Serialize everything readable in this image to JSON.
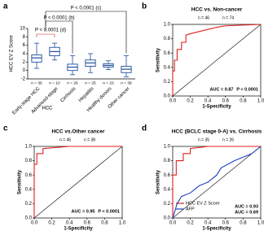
{
  "chart_data": [
    {
      "type": "box",
      "panel_label": "a",
      "y_label": "HCC EV Z Score",
      "categories": [
        "Early-stage HCC",
        "Advanced-stage",
        "Cirrhosis",
        "Hepatitis",
        "Healthy donors",
        "Other cancer"
      ],
      "group_label": "HCC",
      "n_labels": [
        "n = 36",
        "n = 10",
        "n = 26",
        "n = 25",
        "n = 23",
        "n = 38"
      ],
      "min": [
        0.5,
        2.5,
        -1,
        -0.5,
        0.2,
        -1.5
      ],
      "q1": [
        2,
        3.5,
        0,
        1,
        0.8,
        -0.5
      ],
      "median": [
        3,
        4.5,
        0.8,
        1.8,
        1.2,
        0.3
      ],
      "q3": [
        3.7,
        5.5,
        1.5,
        2.5,
        1.6,
        1
      ],
      "max": [
        6.5,
        6.5,
        3.5,
        4,
        2.3,
        3.5
      ],
      "color": "#1f4e9c",
      "ylim": [
        -2,
        10
      ],
      "yticks": [
        -2,
        0,
        2,
        4,
        6,
        8,
        10
      ],
      "comparisons": [
        {
          "label": "P < 0.0001 (c)",
          "color": "#000000"
        },
        {
          "label": "P < 0.0001 (b)",
          "color": "#000000"
        },
        {
          "label": "P < 0.0001 (d)",
          "color": "#e0201b"
        }
      ]
    },
    {
      "type": "line",
      "panel_label": "b",
      "title": "HCC vs. Non-cancer",
      "x_label": "1-Specificity",
      "y_label": "Sensitivity",
      "n_labels": [
        "n = 46",
        "n = 74"
      ],
      "annotations": [
        "AUC = 0.87",
        "P < 0.0001"
      ],
      "series": [
        {
          "color": "#e0201b",
          "x": [
            0,
            0,
            0.02,
            0.02,
            0.05,
            0.05,
            0.1,
            0.1,
            0.15,
            0.15,
            0.2,
            0.3,
            0.4,
            0.5,
            0.6,
            1.0
          ],
          "values": [
            0,
            0.35,
            0.35,
            0.5,
            0.5,
            0.65,
            0.65,
            0.75,
            0.75,
            0.85,
            0.87,
            0.9,
            0.93,
            0.96,
            0.98,
            1.0
          ]
        }
      ],
      "xlim": [
        0,
        1
      ],
      "ylim": [
        0,
        1
      ],
      "xticks": [
        {
          "value": 0,
          "label": "0.0"
        },
        0.2,
        0.4,
        0.6,
        0.8,
        {
          "value": 1,
          "label": "1.0"
        }
      ],
      "yticks": [
        {
          "value": 0,
          "label": "0.0"
        },
        0.2,
        0.4,
        0.6,
        0.8,
        {
          "value": 1,
          "label": "1.0"
        }
      ]
    },
    {
      "type": "line",
      "panel_label": "c",
      "title": "HCC vs.Other cancer",
      "x_label": "1-Specificity",
      "y_label": "Sensitivity",
      "n_labels": [
        "n = 46",
        "n = 38"
      ],
      "annotations": [
        "AUC = 0.95",
        "P < 0.0001"
      ],
      "series": [
        {
          "color": "#e0201b",
          "x": [
            0,
            0,
            0.03,
            0.03,
            0.1,
            0.1,
            0.4,
            1
          ],
          "values": [
            0,
            0.75,
            0.75,
            0.9,
            0.9,
            0.97,
            1,
            1
          ]
        }
      ],
      "xlim": [
        0,
        1
      ],
      "ylim": [
        0,
        1
      ],
      "xticks": [
        {
          "value": 0,
          "label": "0.0"
        },
        0.2,
        0.4,
        0.6,
        0.8,
        {
          "value": 1,
          "label": "1.0"
        }
      ],
      "yticks": [
        {
          "value": 0,
          "label": "0.0"
        },
        0.2,
        0.4,
        0.6,
        0.8,
        {
          "value": 1,
          "label": "1.0"
        }
      ]
    },
    {
      "type": "line",
      "panel_label": "d",
      "title": "HCC (BCLC stage 0-A) vs. Cirrhosis",
      "x_label": "1-Specificity",
      "y_label": "Sensitivity",
      "n_labels": [
        "n = 35",
        "n = 26"
      ],
      "annotations": [
        "AUC = 0.93",
        "AUC = 0.69"
      ],
      "series": [
        {
          "name": "HCC EV Z Score",
          "color": "#e0201b",
          "x": [
            0,
            0,
            0.04,
            0.04,
            0.12,
            0.12,
            0.2,
            0.2,
            0.4,
            1
          ],
          "values": [
            0,
            0.6,
            0.6,
            0.8,
            0.8,
            0.9,
            0.9,
            0.97,
            1,
            1
          ]
        },
        {
          "name": "AFP",
          "color": "#1f3fbf",
          "x": [
            0,
            0.05,
            0.1,
            0.2,
            0.3,
            0.4,
            0.5,
            0.55,
            0.7,
            0.8,
            0.9,
            1
          ],
          "values": [
            0,
            0.2,
            0.3,
            0.35,
            0.45,
            0.5,
            0.6,
            0.7,
            0.8,
            0.85,
            0.9,
            1
          ]
        }
      ],
      "xlim": [
        0,
        1
      ],
      "ylim": [
        0,
        1
      ],
      "xticks": [
        {
          "value": 0,
          "label": "0.0"
        },
        0.2,
        0.4,
        0.6,
        0.8,
        {
          "value": 1,
          "label": "1.0"
        }
      ],
      "yticks": [
        {
          "value": 0,
          "label": "0.0"
        },
        0.2,
        0.4,
        0.6,
        0.8,
        {
          "value": 1,
          "label": "1.0"
        }
      ]
    }
  ]
}
